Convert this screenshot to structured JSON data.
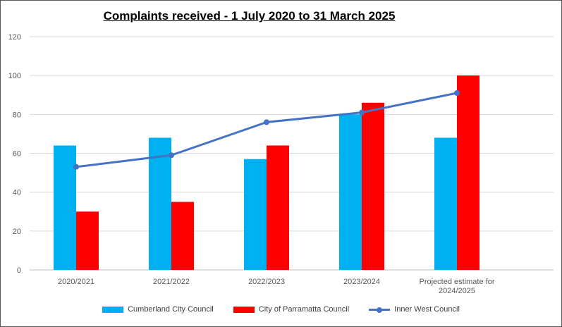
{
  "chart_data": {
    "type": "bar",
    "title": "Complaints received - 1 July 2020 to 31 March 2025",
    "categories": [
      "2020/2021",
      "2021/2022",
      "2022/2023",
      "2023/2024",
      "Projected estimate for\n2024/2025"
    ],
    "series": [
      {
        "name": "Cumberland City Council",
        "type": "bar",
        "color": "#00B0F0",
        "values": [
          64,
          68,
          57,
          80,
          68
        ]
      },
      {
        "name": "City of Parramatta Council",
        "type": "bar",
        "color": "#FF0000",
        "values": [
          30,
          35,
          64,
          86,
          100
        ]
      },
      {
        "name": "Inner West Council",
        "type": "line",
        "color": "#4472C4",
        "values": [
          53,
          59,
          76,
          81,
          91
        ]
      }
    ],
    "ylim": [
      0,
      120
    ],
    "yticks": [
      0,
      20,
      40,
      60,
      80,
      100,
      120
    ],
    "grid": true,
    "legend": "bottom"
  }
}
